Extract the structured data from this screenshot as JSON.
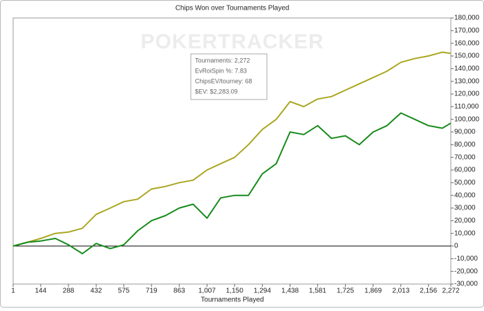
{
  "chart_data": {
    "type": "line",
    "title": "Chips Won over Tournaments Played",
    "xlabel": "Tournaments Played",
    "watermark": "POKERTRACKER",
    "annotations": [
      "Tournaments: 2,272",
      "EvRoiSpin %: 7.83",
      "ChipsEV/tourney: 68",
      "$EV: $2,283.09"
    ],
    "x": [
      1,
      76,
      144,
      220,
      288,
      360,
      432,
      505,
      575,
      647,
      719,
      791,
      863,
      935,
      1007,
      1078,
      1150,
      1222,
      1294,
      1366,
      1438,
      1509,
      1581,
      1653,
      1725,
      1797,
      1869,
      1941,
      2013,
      2085,
      2156,
      2228,
      2272
    ],
    "series": [
      {
        "color": "#a9a61f",
        "values": [
          0,
          3000,
          6000,
          10000,
          11000,
          14000,
          25000,
          30000,
          35000,
          37000,
          45000,
          47000,
          50000,
          52000,
          60000,
          65000,
          70000,
          80000,
          92000,
          100000,
          114000,
          110000,
          116000,
          118000,
          123000,
          128000,
          133000,
          138000,
          145000,
          148000,
          150000,
          153000,
          152000
        ]
      },
      {
        "color": "#168a1a",
        "values": [
          0,
          3000,
          4000,
          6000,
          1000,
          -6000,
          2000,
          -2000,
          1000,
          12000,
          20000,
          24000,
          30000,
          33000,
          22000,
          38000,
          40000,
          40000,
          57000,
          65000,
          90000,
          88000,
          95000,
          85000,
          87000,
          80000,
          90000,
          95000,
          105000,
          100000,
          95000,
          93000,
          97000
        ]
      }
    ],
    "xlim": [
      1,
      2272
    ],
    "xticks": [
      1,
      144,
      288,
      432,
      575,
      719,
      863,
      {
        "value": 1007,
        "label": "1,007"
      },
      {
        "value": 1150,
        "label": "1,150"
      },
      {
        "value": 1294,
        "label": "1,294"
      },
      {
        "value": 1438,
        "label": "1,438"
      },
      {
        "value": 1581,
        "label": "1,581"
      },
      {
        "value": 1725,
        "label": "1,725"
      },
      {
        "value": 1869,
        "label": "1,869"
      },
      {
        "value": 2013,
        "label": "2,013"
      },
      {
        "value": 2156,
        "label": "2,156"
      },
      {
        "value": 2272,
        "label": "2,272"
      }
    ],
    "ylim": [
      -30000,
      180000
    ],
    "yticks": [
      {
        "value": -30000,
        "label": "-30,000"
      },
      {
        "value": -20000,
        "label": "-20,000"
      },
      {
        "value": -10000,
        "label": "-10,000"
      },
      0,
      {
        "value": 10000,
        "label": "10,000"
      },
      {
        "value": 20000,
        "label": "20,000"
      },
      {
        "value": 30000,
        "label": "30,000"
      },
      {
        "value": 40000,
        "label": "40,000"
      },
      {
        "value": 50000,
        "label": "50,000"
      },
      {
        "value": 60000,
        "label": "60,000"
      },
      {
        "value": 70000,
        "label": "70,000"
      },
      {
        "value": 80000,
        "label": "80,000"
      },
      {
        "value": 90000,
        "label": "90,000"
      },
      {
        "value": 100000,
        "label": "100,000"
      },
      {
        "value": 110000,
        "label": "110,000"
      },
      {
        "value": 120000,
        "label": "120,000"
      },
      {
        "value": 130000,
        "label": "130,000"
      },
      {
        "value": 140000,
        "label": "140,000"
      },
      {
        "value": 150000,
        "label": "150,000"
      },
      {
        "value": 160000,
        "label": "160,000"
      },
      {
        "value": 170000,
        "label": "170,000"
      },
      {
        "value": 180000,
        "label": "180,000"
      }
    ],
    "yaxis_side": "right"
  }
}
